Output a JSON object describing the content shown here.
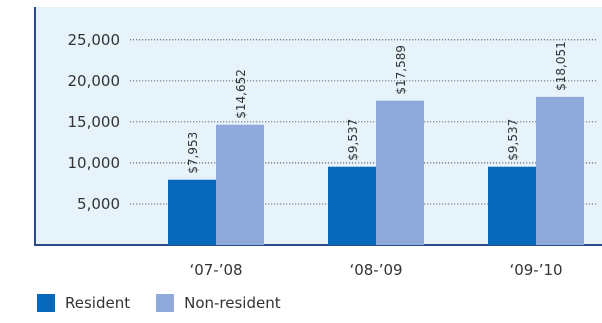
{
  "chart_data": {
    "type": "bar",
    "categories": [
      "‘07-’08",
      "‘08-’09",
      "‘09-’10"
    ],
    "series": [
      {
        "name": "Resident",
        "values": [
          7953,
          9537,
          9537
        ],
        "labels": [
          "$7,953",
          "$9,537",
          "$9,537"
        ],
        "color": "#0767b8"
      },
      {
        "name": "Non-resident",
        "values": [
          14652,
          17589,
          18051
        ],
        "labels": [
          "$14,652",
          "$17,589",
          "$18,051"
        ],
        "color": "#8fa9db"
      }
    ],
    "y_ticks": [
      5000,
      10000,
      15000,
      20000,
      25000
    ],
    "y_tick_labels": [
      "5,000",
      "10,000",
      "15,000",
      "20,000",
      "25,000"
    ],
    "ylim": [
      0,
      29000
    ],
    "grid": true,
    "legend_position": "bottom-left",
    "panel_color": "#e6f3fb",
    "axis_color": "#2b4a8a"
  }
}
